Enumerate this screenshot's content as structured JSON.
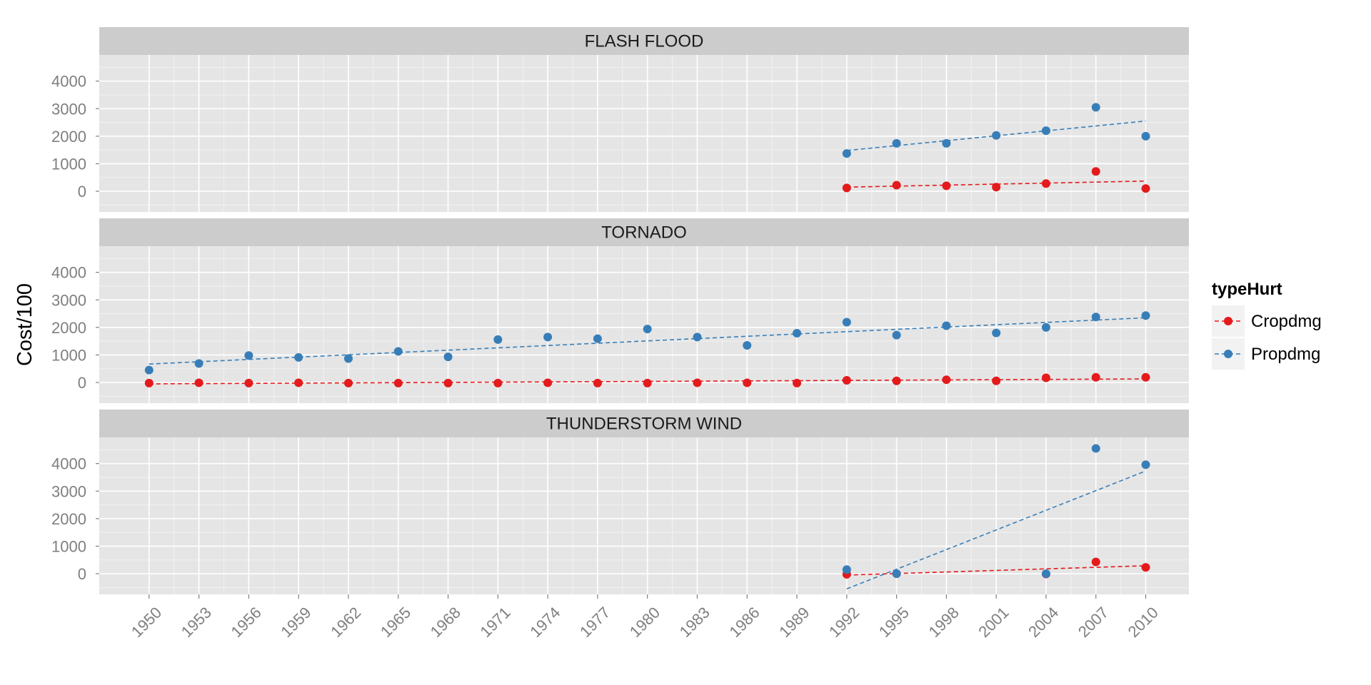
{
  "chart_data": {
    "type": "scatter",
    "ylabel": "Cost/100",
    "xlabel": "",
    "x_ticks": [
      1950,
      1953,
      1956,
      1959,
      1962,
      1965,
      1968,
      1971,
      1974,
      1977,
      1980,
      1983,
      1986,
      1989,
      1992,
      1995,
      1998,
      2001,
      2004,
      2007,
      2010
    ],
    "x_tick_labels": [
      "1950",
      "1953",
      "1956",
      "1959",
      "1962",
      "1965",
      "1968",
      "1971",
      "1974",
      "1977",
      "1980",
      "1983",
      "1986",
      "1989",
      "1992",
      "1995",
      "1998",
      "2001",
      "2004",
      "2007",
      "2010"
    ],
    "xlim": [
      1947,
      2012.6
    ],
    "y_ticks": [
      0,
      1000,
      2000,
      3000,
      4000
    ],
    "y_tick_labels": [
      "0",
      "1000",
      "2000",
      "3000",
      "4000"
    ],
    "ylim": [
      -750,
      4950
    ],
    "grid": true,
    "trend_lines": "dashed linear fit per series",
    "legend": {
      "title": "typeHurt",
      "position": "right",
      "items": [
        {
          "label": "Cropdmg",
          "color": "#e41a1c"
        },
        {
          "label": "Propdmg",
          "color": "#377eb8"
        }
      ]
    },
    "panels": [
      {
        "title": "FLASH FLOOD",
        "series": [
          {
            "name": "Cropdmg",
            "color": "#e41a1c",
            "x": [
              1992,
              1995,
              1998,
              2001,
              2004,
              2007,
              2010
            ],
            "y": [
              120,
              220,
              200,
              150,
              280,
              720,
              100
            ],
            "trend": [
              [
                1992,
                150
              ],
              [
                2010,
                370
              ]
            ]
          },
          {
            "name": "Propdmg",
            "color": "#377eb8",
            "x": [
              1992,
              1995,
              1998,
              2001,
              2004,
              2007,
              2010
            ],
            "y": [
              1370,
              1740,
              1740,
              2030,
              2200,
              3050,
              2000
            ],
            "trend": [
              [
                1992,
                1480
              ],
              [
                2010,
                2550
              ]
            ]
          }
        ]
      },
      {
        "title": "TORNADO",
        "series": [
          {
            "name": "Cropdmg",
            "color": "#e41a1c",
            "x": [
              1950,
              1953,
              1956,
              1959,
              1962,
              1965,
              1968,
              1971,
              1974,
              1977,
              1980,
              1983,
              1986,
              1989,
              1992,
              1995,
              1998,
              2001,
              2004,
              2007,
              2010
            ],
            "y": [
              -20,
              -10,
              -20,
              -10,
              -20,
              -20,
              -20,
              -20,
              -10,
              -20,
              -20,
              -10,
              -10,
              -20,
              80,
              60,
              100,
              60,
              170,
              190,
              190
            ],
            "trend": [
              [
                1950,
                -50
              ],
              [
                2010,
                130
              ]
            ]
          },
          {
            "name": "Propdmg",
            "color": "#377eb8",
            "x": [
              1950,
              1953,
              1956,
              1959,
              1962,
              1965,
              1968,
              1971,
              1974,
              1977,
              1980,
              1983,
              1986,
              1989,
              1992,
              1995,
              1998,
              2001,
              2004,
              2007,
              2010
            ],
            "y": [
              450,
              690,
              980,
              910,
              870,
              1130,
              930,
              1560,
              1650,
              1590,
              1940,
              1650,
              1350,
              1790,
              2190,
              1720,
              2060,
              1800,
              2000,
              2380,
              2430
            ],
            "trend": [
              [
                1950,
                670
              ],
              [
                2010,
                2350
              ]
            ]
          }
        ]
      },
      {
        "title": "THUNDERSTORM WIND",
        "series": [
          {
            "name": "Cropdmg",
            "color": "#e41a1c",
            "x": [
              1992,
              1995,
              2004,
              2007,
              2010
            ],
            "y": [
              -20,
              0,
              -10,
              430,
              230
            ],
            "trend": [
              [
                1992,
                -50
              ],
              [
                2010,
                290
              ]
            ]
          },
          {
            "name": "Propdmg",
            "color": "#377eb8",
            "x": [
              1992,
              1995,
              2004,
              2007,
              2010
            ],
            "y": [
              150,
              0,
              0,
              4550,
              3960
            ],
            "trend": [
              [
                1992,
                -550
              ],
              [
                2010,
                3730
              ]
            ]
          }
        ]
      }
    ]
  }
}
